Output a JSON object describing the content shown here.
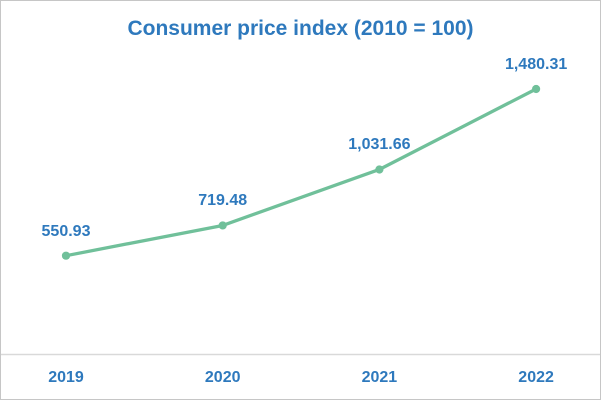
{
  "chart_data": {
    "type": "line",
    "title": "Consumer price index (2010 = 100)",
    "categories": [
      "2019",
      "2020",
      "2021",
      "2022"
    ],
    "series": [
      {
        "name": "Consumer price index (2010 = 100)",
        "values": [
          550.93,
          719.48,
          1031.66,
          1480.31
        ]
      }
    ],
    "data_labels": [
      "550.93",
      "719.48",
      "1,031.66",
      "1,480.31"
    ],
    "xlabel": "",
    "ylabel": "",
    "ylim": [
      0,
      1600
    ],
    "grid": false,
    "legend": "none",
    "colors": {
      "line": "#70C09A",
      "marker": "#70C09A",
      "text": "#2E79BD",
      "axis_line": "#D9D9D9",
      "background": "#FFFFFF"
    }
  }
}
